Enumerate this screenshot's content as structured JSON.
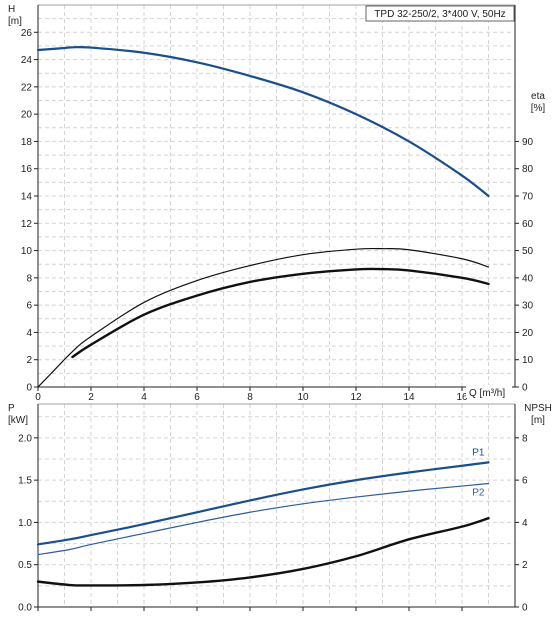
{
  "chart_data": [
    {
      "type": "line",
      "title": "TPD 32-250/2, 3*400 V, 50Hz",
      "xlabel": "Q [m³/h]",
      "xlim": [
        0,
        18
      ],
      "x_ticks": [
        0,
        2,
        4,
        6,
        8,
        10,
        12,
        14,
        16
      ],
      "y_left": {
        "label_top": "H",
        "label_unit": "[m]",
        "range": [
          0,
          28
        ],
        "ticks": [
          0,
          2,
          4,
          6,
          8,
          10,
          12,
          14,
          16,
          18,
          20,
          22,
          24,
          26
        ]
      },
      "y_right": {
        "label_top": "eta",
        "label_unit": "[%]",
        "range": [
          0,
          140
        ],
        "ticks": [
          0,
          10,
          20,
          30,
          40,
          50,
          60,
          70,
          80,
          90
        ]
      },
      "grid": true,
      "series": [
        {
          "axis": "left",
          "color": "#1a4f8c",
          "width": 2.2,
          "x": [
            0,
            1,
            1.3,
            2,
            4,
            6,
            8,
            10,
            12,
            14,
            16,
            17
          ],
          "y": [
            24.7,
            24.85,
            24.9,
            24.88,
            24.5,
            23.8,
            22.8,
            21.6,
            20.0,
            18.0,
            15.5,
            14.0
          ]
        },
        {
          "axis": "right",
          "color": "#111111",
          "width": 1.2,
          "x": [
            0,
            0.5,
            1.3,
            2,
            4,
            6,
            8,
            10,
            12,
            13,
            14,
            16,
            17
          ],
          "y": [
            0,
            5,
            13,
            18.5,
            31,
            39,
            44.5,
            48.5,
            50.5,
            50.7,
            50.3,
            47,
            44
          ]
        },
        {
          "axis": "right",
          "color": "#111111",
          "width": 2.4,
          "x": [
            1.3,
            2,
            4,
            6,
            8,
            10,
            12,
            13,
            14,
            16,
            17
          ],
          "y": [
            11,
            15.5,
            26.5,
            33.5,
            38.5,
            41.5,
            43.1,
            43.2,
            42.7,
            40,
            37.8
          ]
        }
      ]
    },
    {
      "type": "line",
      "xlim": [
        0,
        18
      ],
      "x_ticks": [
        0,
        2,
        4,
        6,
        8,
        10,
        12,
        14,
        16
      ],
      "y_left": {
        "label_top": "P",
        "label_unit": "[kW]",
        "range": [
          0,
          2.4
        ],
        "ticks": [
          0.0,
          0.5,
          1.0,
          1.5,
          2.0
        ],
        "tick_labels": [
          "0.0",
          "0.5",
          "1.0",
          "1.5",
          "2.0"
        ]
      },
      "y_right": {
        "label_top": "NPSH",
        "label_unit": "[m]",
        "range": [
          0,
          9.6
        ],
        "ticks": [
          0,
          2,
          4,
          6,
          8
        ]
      },
      "grid": true,
      "series": [
        {
          "name": "P1",
          "axis": "left",
          "color": "#1a4f8c",
          "width": 2.2,
          "x": [
            0,
            1.2,
            2,
            4,
            6,
            8,
            10,
            12,
            14,
            16,
            17
          ],
          "y": [
            0.74,
            0.8,
            0.85,
            0.98,
            1.12,
            1.26,
            1.39,
            1.5,
            1.59,
            1.67,
            1.71
          ]
        },
        {
          "name": "P2",
          "axis": "left",
          "color": "#2a5d9a",
          "width": 1.2,
          "x": [
            0,
            1.2,
            2,
            4,
            6,
            8,
            10,
            12,
            14,
            16,
            17
          ],
          "y": [
            0.62,
            0.68,
            0.74,
            0.87,
            1.0,
            1.12,
            1.22,
            1.3,
            1.37,
            1.43,
            1.46
          ]
        },
        {
          "axis": "right",
          "color": "#111111",
          "width": 2.4,
          "x": [
            0,
            1.2,
            2,
            4,
            6,
            8,
            10,
            12,
            14,
            16,
            17
          ],
          "y": [
            1.2,
            1.04,
            1.02,
            1.04,
            1.16,
            1.4,
            1.8,
            2.4,
            3.2,
            3.8,
            4.2
          ]
        }
      ]
    }
  ]
}
